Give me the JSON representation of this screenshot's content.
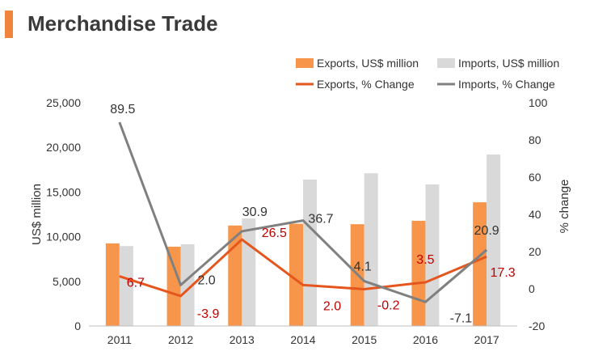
{
  "header": {
    "title": "Merchandise Trade",
    "accent_color": "#f0843a"
  },
  "chart_data": {
    "type": "bar",
    "categories": [
      "2011",
      "2012",
      "2013",
      "2014",
      "2015",
      "2016",
      "2017"
    ],
    "series": [
      {
        "name": "Exports, US$ million",
        "kind": "bar",
        "axis": "left",
        "color": "#f7964a",
        "values": [
          9250,
          8880,
          11250,
          11450,
          11400,
          11780,
          13850
        ]
      },
      {
        "name": "Imports, US$ million",
        "kind": "bar",
        "axis": "left",
        "color": "#d9d9d9",
        "values": [
          8950,
          9150,
          12050,
          16400,
          17100,
          15850,
          19200
        ]
      },
      {
        "name": "Exports, % Change",
        "kind": "line",
        "axis": "right",
        "color": "#e5561e",
        "values": [
          6.7,
          -3.9,
          26.5,
          2.0,
          -0.2,
          3.5,
          17.3
        ],
        "labels": [
          "6.7",
          "-3.9",
          "26.5",
          "2.0",
          "-0.2",
          "3.5",
          "17.3"
        ],
        "label_color": "#c00000"
      },
      {
        "name": "Imports, % Change",
        "kind": "line",
        "axis": "right",
        "color": "#808080",
        "values": [
          89.5,
          2.0,
          30.9,
          36.7,
          4.1,
          -7.1,
          20.9
        ],
        "labels": [
          "89.5",
          "2.0",
          "30.9",
          "36.7",
          "4.1",
          "-7.1",
          "20.9"
        ],
        "label_color": "#333333"
      }
    ],
    "ylabel": "US$ million",
    "ylim": [
      0,
      25000
    ],
    "yticks": [
      "0",
      "5,000",
      "10,000",
      "15,000",
      "20,000",
      "25,000"
    ],
    "y2label": "% change",
    "y2lim": [
      -20,
      100
    ],
    "y2ticks": [
      "-20",
      "0",
      "20",
      "40",
      "60",
      "80",
      "100"
    ],
    "grid": false,
    "legend_position": "top-right"
  }
}
